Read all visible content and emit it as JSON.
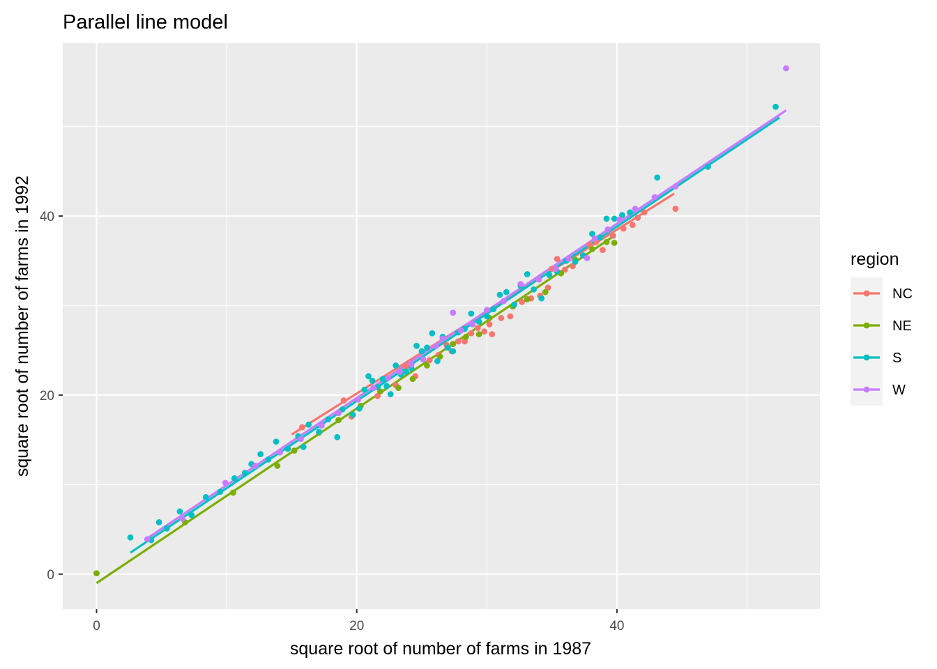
{
  "chart_data": {
    "type": "scatter",
    "title": "Parallel line model",
    "xlabel": "square root of number of farms in 1987",
    "ylabel": "square root of number of farms in 1992",
    "xlim": [
      -2.6,
      55.6
    ],
    "ylim": [
      -3.9,
      59.3
    ],
    "x_ticks": [
      0,
      20,
      40
    ],
    "y_ticks": [
      0,
      20,
      40
    ],
    "x_tick_labels": [
      "0",
      "20",
      "40"
    ],
    "y_tick_labels": [
      "0",
      "20",
      "40"
    ],
    "x_minor_ticks": [
      10,
      30,
      50
    ],
    "y_minor_ticks": [
      10,
      30,
      50
    ],
    "grid": true,
    "legend": {
      "title": "region",
      "placement": "right"
    },
    "panel_color": "#ebebeb",
    "series": [
      {
        "name": "NC",
        "color": "#F8766D",
        "line": [
          [
            15.0,
            15.6
          ],
          [
            44.4,
            42.5
          ]
        ],
        "points": [
          [
            15.8,
            16.4
          ],
          [
            19.0,
            19.4
          ],
          [
            19.6,
            17.6
          ],
          [
            21.6,
            19.9
          ],
          [
            23.0,
            21.1
          ],
          [
            23.8,
            23.2
          ],
          [
            24.5,
            22.1
          ],
          [
            25.6,
            23.9
          ],
          [
            26.3,
            24.5
          ],
          [
            26.9,
            25.6
          ],
          [
            27.3,
            24.9
          ],
          [
            27.8,
            26.0
          ],
          [
            28.3,
            26.0
          ],
          [
            28.8,
            26.9
          ],
          [
            29.3,
            27.5
          ],
          [
            29.8,
            27.1
          ],
          [
            30.2,
            27.9
          ],
          [
            30.4,
            26.8
          ],
          [
            31.1,
            28.6
          ],
          [
            31.8,
            28.8
          ],
          [
            32.7,
            30.4
          ],
          [
            33.4,
            30.8
          ],
          [
            34.1,
            31.1
          ],
          [
            34.7,
            32.0
          ],
          [
            35.0,
            34.1
          ],
          [
            35.4,
            35.2
          ],
          [
            36.0,
            34.0
          ],
          [
            36.6,
            34.4
          ],
          [
            37.9,
            36.8
          ],
          [
            38.4,
            37.1
          ],
          [
            38.9,
            36.2
          ],
          [
            39.7,
            37.8
          ],
          [
            40.5,
            38.6
          ],
          [
            41.2,
            39.0
          ],
          [
            41.6,
            39.8
          ],
          [
            42.1,
            40.4
          ],
          [
            44.5,
            40.8
          ]
        ]
      },
      {
        "name": "NE",
        "color": "#7CAE00",
        "line": [
          [
            0.0,
            -1.0
          ],
          [
            39.8,
            37.8
          ]
        ],
        "points": [
          [
            0.0,
            0.1
          ],
          [
            6.8,
            5.8
          ],
          [
            10.5,
            9.1
          ],
          [
            13.9,
            12.1
          ],
          [
            15.2,
            13.8
          ],
          [
            17.1,
            15.8
          ],
          [
            18.6,
            17.2
          ],
          [
            20.3,
            18.8
          ],
          [
            21.8,
            20.4
          ],
          [
            23.2,
            20.8
          ],
          [
            24.3,
            21.8
          ],
          [
            25.4,
            23.3
          ],
          [
            26.4,
            24.3
          ],
          [
            27.4,
            25.7
          ],
          [
            28.4,
            26.5
          ],
          [
            29.4,
            26.8
          ],
          [
            30.2,
            28.6
          ],
          [
            32.0,
            29.9
          ],
          [
            33.1,
            30.7
          ],
          [
            34.5,
            31.5
          ],
          [
            35.7,
            33.6
          ],
          [
            36.8,
            35.1
          ],
          [
            38.1,
            36.3
          ],
          [
            39.2,
            37.1
          ],
          [
            39.8,
            37.0
          ]
        ]
      },
      {
        "name": "S",
        "color": "#00BFC4",
        "line": [
          [
            2.6,
            2.4
          ],
          [
            52.5,
            51.0
          ]
        ],
        "points": [
          [
            2.6,
            4.1
          ],
          [
            4.2,
            3.8
          ],
          [
            4.8,
            5.8
          ],
          [
            5.4,
            5.1
          ],
          [
            6.4,
            7.0
          ],
          [
            7.3,
            6.6
          ],
          [
            8.4,
            8.6
          ],
          [
            9.5,
            9.2
          ],
          [
            10.6,
            10.7
          ],
          [
            11.4,
            11.3
          ],
          [
            11.9,
            12.3
          ],
          [
            12.6,
            13.4
          ],
          [
            13.2,
            12.8
          ],
          [
            13.8,
            14.8
          ],
          [
            14.7,
            14.0
          ],
          [
            15.5,
            15.4
          ],
          [
            15.9,
            14.2
          ],
          [
            16.3,
            16.7
          ],
          [
            17.1,
            15.9
          ],
          [
            17.8,
            17.3
          ],
          [
            18.5,
            15.3
          ],
          [
            18.9,
            18.4
          ],
          [
            19.7,
            17.8
          ],
          [
            20.2,
            18.5
          ],
          [
            20.6,
            20.6
          ],
          [
            20.9,
            22.1
          ],
          [
            21.2,
            21.6
          ],
          [
            21.6,
            20.9
          ],
          [
            22.0,
            21.8
          ],
          [
            22.3,
            21.0
          ],
          [
            22.6,
            20.1
          ],
          [
            23.0,
            23.3
          ],
          [
            23.4,
            22.3
          ],
          [
            23.8,
            22.6
          ],
          [
            24.2,
            23.0
          ],
          [
            24.6,
            25.5
          ],
          [
            25.0,
            24.9
          ],
          [
            25.4,
            25.3
          ],
          [
            25.8,
            26.9
          ],
          [
            26.2,
            23.8
          ],
          [
            26.6,
            26.5
          ],
          [
            27.0,
            25.3
          ],
          [
            27.4,
            24.9
          ],
          [
            27.8,
            27.0
          ],
          [
            28.3,
            27.4
          ],
          [
            28.8,
            29.1
          ],
          [
            29.4,
            28.2
          ],
          [
            30.0,
            28.8
          ],
          [
            30.5,
            29.6
          ],
          [
            31.0,
            31.2
          ],
          [
            31.5,
            31.5
          ],
          [
            32.1,
            30.1
          ],
          [
            32.6,
            32.2
          ],
          [
            33.1,
            33.5
          ],
          [
            33.6,
            31.8
          ],
          [
            34.2,
            30.8
          ],
          [
            34.8,
            33.4
          ],
          [
            35.4,
            33.8
          ],
          [
            36.1,
            35.0
          ],
          [
            36.8,
            34.9
          ],
          [
            37.4,
            35.6
          ],
          [
            38.1,
            38.0
          ],
          [
            38.7,
            37.6
          ],
          [
            39.2,
            39.7
          ],
          [
            39.8,
            39.7
          ],
          [
            40.4,
            40.1
          ],
          [
            41.0,
            40.4
          ],
          [
            43.1,
            44.3
          ],
          [
            47.0,
            45.5
          ],
          [
            52.2,
            52.2
          ]
        ]
      },
      {
        "name": "W",
        "color": "#C77CFF",
        "line": [
          [
            3.9,
            4.0
          ],
          [
            53.0,
            51.8
          ]
        ],
        "points": [
          [
            3.9,
            3.9
          ],
          [
            6.6,
            6.2
          ],
          [
            9.9,
            10.2
          ],
          [
            12.2,
            12.1
          ],
          [
            14.1,
            13.6
          ],
          [
            15.7,
            15.1
          ],
          [
            17.3,
            16.6
          ],
          [
            18.6,
            18.0
          ],
          [
            20.1,
            19.5
          ],
          [
            21.3,
            20.8
          ],
          [
            22.4,
            21.9
          ],
          [
            23.3,
            22.6
          ],
          [
            24.2,
            23.4
          ],
          [
            25.1,
            24.0
          ],
          [
            26.1,
            25.5
          ],
          [
            26.6,
            26.3
          ],
          [
            27.4,
            29.2
          ],
          [
            28.0,
            27.2
          ],
          [
            28.9,
            27.9
          ],
          [
            30.0,
            29.5
          ],
          [
            31.3,
            30.5
          ],
          [
            32.6,
            32.4
          ],
          [
            34.0,
            32.9
          ],
          [
            35.3,
            34.1
          ],
          [
            36.3,
            35.2
          ],
          [
            37.7,
            35.3
          ],
          [
            38.3,
            37.5
          ],
          [
            39.3,
            38.5
          ],
          [
            40.2,
            39.6
          ],
          [
            41.4,
            40.8
          ],
          [
            42.9,
            42.1
          ],
          [
            44.5,
            43.3
          ],
          [
            53.0,
            56.5
          ]
        ]
      }
    ]
  }
}
